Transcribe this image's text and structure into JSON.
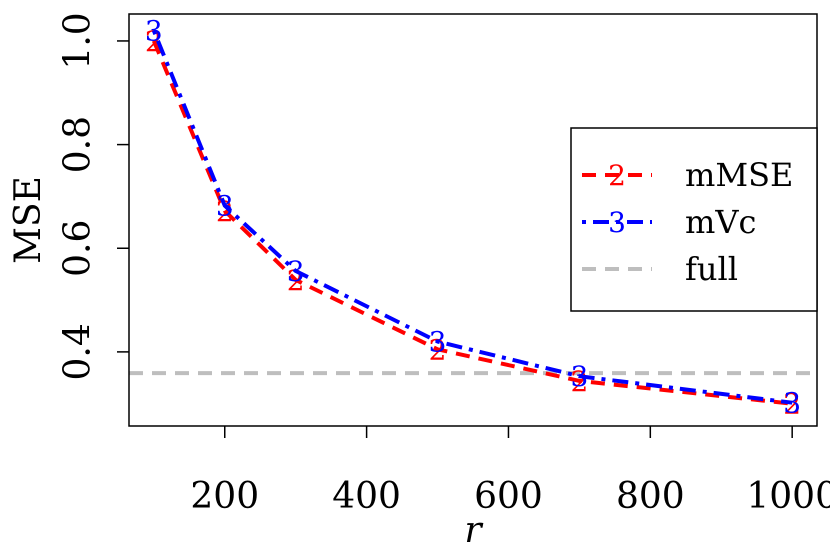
{
  "chart_data": {
    "type": "line",
    "xlabel": "r",
    "ylabel": "MSE",
    "xlim": [
      65,
      1035
    ],
    "ylim": [
      0.257,
      1.052
    ],
    "xticks": [
      200,
      400,
      600,
      800,
      1000
    ],
    "xtick_labels": [
      "200",
      "400",
      "600",
      "800",
      "1000"
    ],
    "yticks": [
      0.4,
      0.6,
      0.8,
      1.0
    ],
    "ytick_labels": [
      "0.4",
      "0.6",
      "0.8",
      "1.0"
    ],
    "grid": false,
    "legend_position": "right",
    "x": [
      100,
      200,
      300,
      500,
      700,
      1000
    ],
    "series": [
      {
        "name": "mMSE",
        "marker": "2",
        "color": "#ff0000",
        "dash": "dashed",
        "values": [
          1.0,
          0.672,
          0.539,
          0.405,
          0.344,
          0.3
        ]
      },
      {
        "name": "mVc",
        "marker": "3",
        "color": "#0000ff",
        "dash": "dotdash",
        "values": [
          1.02,
          0.682,
          0.556,
          0.42,
          0.353,
          0.302
        ]
      }
    ],
    "reference_lines": [
      {
        "name": "full",
        "color": "#bebebe",
        "dash": "dashed",
        "y": 0.359
      }
    ]
  }
}
